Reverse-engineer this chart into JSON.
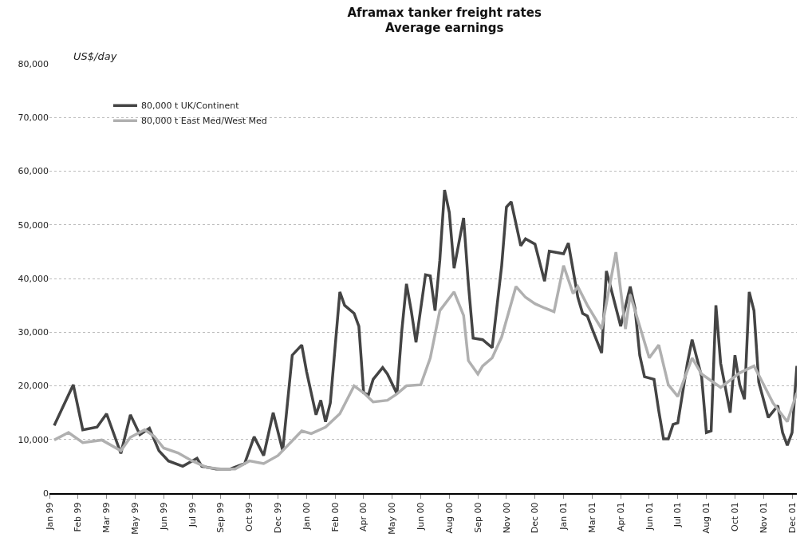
{
  "chart_data": {
    "type": "line",
    "title": "Aframax tanker freight rates",
    "subtitle": "Average earnings",
    "ylabel": "US$/day",
    "xlim": [
      "1999-01-01",
      "2002-01-04"
    ],
    "ylim": [
      0,
      80000
    ],
    "xticks": [
      {
        "value": "1999-01-01",
        "label": "Jan 99"
      },
      {
        "value": "1999-02-12",
        "label": "Feb 99"
      },
      {
        "value": "1999-03-26",
        "label": "Mar 99"
      },
      {
        "value": "1999-05-07",
        "label": "May 99"
      },
      {
        "value": "1999-06-18",
        "label": "Jun 99"
      },
      {
        "value": "1999-07-30",
        "label": "Jul 99"
      },
      {
        "value": "1999-09-10",
        "label": "Sep 99"
      },
      {
        "value": "1999-10-22",
        "label": "Oct 99"
      },
      {
        "value": "1999-12-03",
        "label": "Dec 99"
      },
      {
        "value": "2000-01-14",
        "label": "Jan 00"
      },
      {
        "value": "2000-02-25",
        "label": "Feb 00"
      },
      {
        "value": "2000-04-07",
        "label": "Apr 00"
      },
      {
        "value": "2000-05-19",
        "label": "May 00"
      },
      {
        "value": "2000-06-30",
        "label": "Jun 00"
      },
      {
        "value": "2000-08-11",
        "label": "Aug 00"
      },
      {
        "value": "2000-09-22",
        "label": "Sep 00"
      },
      {
        "value": "2000-11-03",
        "label": "Nov 00"
      },
      {
        "value": "2000-12-15",
        "label": "Dec 00"
      },
      {
        "value": "2001-01-26",
        "label": "Jan 01"
      },
      {
        "value": "2001-03-09",
        "label": "Mar 01"
      },
      {
        "value": "2001-04-20",
        "label": "Apr 01"
      },
      {
        "value": "2001-06-01",
        "label": "Jun 01"
      },
      {
        "value": "2001-07-13",
        "label": "Jul 01"
      },
      {
        "value": "2001-08-24",
        "label": "Aug 01"
      },
      {
        "value": "2001-10-05",
        "label": "Oct 01"
      },
      {
        "value": "2001-11-16",
        "label": "Nov 01"
      },
      {
        "value": "2001-12-28",
        "label": "Dec 01"
      }
    ],
    "yticks": [
      0,
      {
        "value": 10000,
        "label": "10,000"
      },
      {
        "value": 20000,
        "label": "20,000"
      },
      {
        "value": 30000,
        "label": "30,000"
      },
      {
        "value": 40000,
        "label": "40,000"
      },
      {
        "value": 50000,
        "label": "50,000"
      },
      {
        "value": 60000,
        "label": "60,000"
      },
      {
        "value": 70000,
        "label": "70,000"
      },
      {
        "value": 80000,
        "label": "80,000"
      }
    ],
    "grid": "y",
    "legend": "top left",
    "marker": "none",
    "line_style": "solid",
    "series": [
      {
        "name": "80,000 t UK/Continent",
        "color": "#444444",
        "x": [
          "1999-01-08",
          "1999-02-05",
          "1999-02-19",
          "1999-03-12",
          "1999-03-26",
          "1999-04-16",
          "1999-04-30",
          "1999-05-14",
          "1999-05-28",
          "1999-06-11",
          "1999-06-25",
          "1999-07-16",
          "1999-08-06",
          "1999-08-13",
          "1999-09-03",
          "1999-09-24",
          "1999-10-15",
          "1999-10-29",
          "1999-11-12",
          "1999-11-26",
          "1999-12-10",
          "1999-12-24",
          "2000-01-07",
          "2000-01-14",
          "2000-01-28",
          "2000-02-04",
          "2000-02-11",
          "2000-02-18",
          "2000-03-03",
          "2000-03-10",
          "2000-03-24",
          "2000-03-31",
          "2000-04-07",
          "2000-04-14",
          "2000-04-21",
          "2000-05-05",
          "2000-05-12",
          "2000-05-26",
          "2000-06-02",
          "2000-06-09",
          "2000-06-16",
          "2000-06-23",
          "2000-07-07",
          "2000-07-14",
          "2000-07-21",
          "2000-07-28",
          "2000-08-04",
          "2000-08-11",
          "2000-08-18",
          "2000-09-01",
          "2000-09-08",
          "2000-09-15",
          "2000-09-29",
          "2000-10-13",
          "2000-10-27",
          "2000-11-03",
          "2000-11-10",
          "2000-11-24",
          "2000-12-01",
          "2000-12-15",
          "2000-12-29",
          "2001-01-05",
          "2001-01-26",
          "2001-02-02",
          "2001-02-16",
          "2001-02-23",
          "2001-03-02",
          "2001-03-09",
          "2001-03-23",
          "2001-03-30",
          "2001-04-06",
          "2001-04-20",
          "2001-05-04",
          "2001-05-11",
          "2001-05-18",
          "2001-05-25",
          "2001-06-08",
          "2001-06-15",
          "2001-06-22",
          "2001-06-29",
          "2001-07-06",
          "2001-07-13",
          "2001-07-27",
          "2001-08-03",
          "2001-08-17",
          "2001-08-24",
          "2001-08-31",
          "2001-09-07",
          "2001-09-14",
          "2001-09-28",
          "2001-10-05",
          "2001-10-12",
          "2001-10-19",
          "2001-10-26",
          "2001-11-02",
          "2001-11-09",
          "2001-11-23",
          "2001-12-07",
          "2001-12-14",
          "2001-12-21",
          "2001-12-28",
          "2002-01-04"
        ],
        "values": [
          12600,
          20200,
          11800,
          12300,
          14800,
          7400,
          14600,
          10900,
          12100,
          7900,
          6000,
          5000,
          6500,
          5000,
          4500,
          4500,
          5500,
          10500,
          7000,
          15000,
          7900,
          25700,
          27600,
          22700,
          14600,
          17300,
          13300,
          16800,
          37500,
          35000,
          33500,
          31100,
          18700,
          18300,
          21200,
          23400,
          22200,
          18500,
          30100,
          39000,
          34000,
          28100,
          40700,
          40500,
          34000,
          43400,
          56500,
          52300,
          41900,
          51300,
          39000,
          28900,
          28600,
          27100,
          42400,
          53300,
          54300,
          46100,
          47400,
          46400,
          39500,
          45100,
          44600,
          46600,
          36500,
          33500,
          33000,
          30600,
          26100,
          41400,
          38000,
          31100,
          38500,
          34500,
          25700,
          21700,
          21200,
          15300,
          10100,
          10100,
          12800,
          13100,
          24200,
          28600,
          21700,
          11300,
          11600,
          35000,
          24200,
          15000,
          25700,
          20200,
          17500,
          37500,
          34000,
          20700,
          14100,
          16300,
          11300,
          8900,
          11300,
          23700
        ]
      },
      {
        "name": "80,000 t East Med/West Med",
        "color": "#b0b0b0",
        "x": [
          "1999-01-08",
          "1999-01-29",
          "1999-02-19",
          "1999-03-19",
          "1999-04-16",
          "1999-04-30",
          "1999-05-21",
          "1999-06-04",
          "1999-06-18",
          "1999-07-09",
          "1999-07-30",
          "1999-08-20",
          "1999-09-10",
          "1999-10-01",
          "1999-10-22",
          "1999-11-12",
          "1999-12-03",
          "2000-01-07",
          "2000-01-21",
          "2000-02-11",
          "2000-03-03",
          "2000-03-24",
          "2000-04-07",
          "2000-04-21",
          "2000-05-12",
          "2000-05-26",
          "2000-06-09",
          "2000-06-30",
          "2000-07-14",
          "2000-07-28",
          "2000-08-18",
          "2000-09-01",
          "2000-09-08",
          "2000-09-22",
          "2000-09-29",
          "2000-10-13",
          "2000-10-27",
          "2000-11-17",
          "2000-12-01",
          "2000-12-15",
          "2000-12-29",
          "2001-01-12",
          "2001-01-26",
          "2001-02-09",
          "2001-02-16",
          "2001-03-02",
          "2001-03-23",
          "2001-04-13",
          "2001-04-27",
          "2001-05-04",
          "2001-06-01",
          "2001-06-15",
          "2001-06-29",
          "2001-07-13",
          "2001-08-03",
          "2001-08-17",
          "2001-09-14",
          "2001-10-12",
          "2001-11-02",
          "2001-11-09",
          "2001-11-30",
          "2001-12-21",
          "2002-01-04"
        ],
        "values": [
          9900,
          11300,
          9400,
          9900,
          7900,
          10400,
          11800,
          10600,
          8400,
          7500,
          6000,
          4800,
          4500,
          4500,
          6000,
          5500,
          7000,
          11600,
          11100,
          12300,
          14800,
          20000,
          18700,
          17000,
          17300,
          18500,
          20000,
          20200,
          25200,
          34000,
          37500,
          33100,
          24700,
          22200,
          23700,
          25200,
          29100,
          38500,
          36500,
          35300,
          34500,
          33800,
          42400,
          37200,
          38500,
          35000,
          30600,
          44900,
          30600,
          37000,
          25200,
          27600,
          20200,
          18000,
          25200,
          22200,
          19700,
          22400,
          23700,
          22000,
          16800,
          13300,
          18700
        ]
      }
    ]
  }
}
